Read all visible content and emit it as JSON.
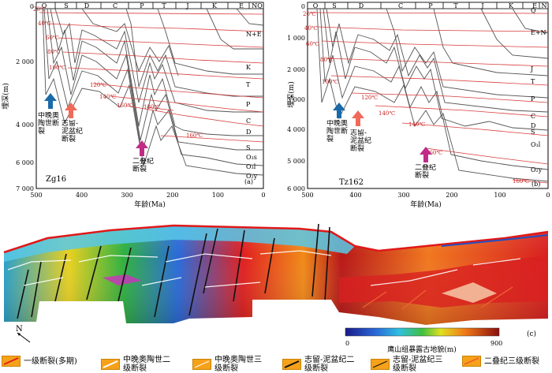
{
  "panel_a": {
    "eras": [
      "O",
      "S",
      "D",
      "C",
      "P",
      "T",
      "J",
      "K",
      "E",
      "NQ"
    ],
    "depth_ticks": [
      "0",
      "2 000",
      "4 000",
      "6 000",
      "7 000"
    ],
    "age_ticks": [
      "500",
      "400",
      "300",
      "200",
      "100",
      "0"
    ],
    "ylabel": "埋深(m)",
    "xlabel": "年龄(Ma)",
    "well": "Zg16",
    "tag": "(a)",
    "temps": [
      "20℃",
      "40℃",
      "60℃",
      "80℃",
      "100℃",
      "120℃",
      "140℃",
      "160℃",
      "180℃",
      "160℃"
    ],
    "strata": [
      "N+E",
      "K",
      "T",
      "P",
      "C",
      "D",
      "S",
      "O₃s",
      "O₃l",
      "O₂y"
    ],
    "arrow_blue": "中晚奥陶世断裂",
    "arrow_red": "志留-泥盆纪断裂",
    "arrow_purple": "二叠纪断裂"
  },
  "panel_b": {
    "eras": [
      "O",
      "S",
      "D",
      "C",
      "P",
      "T",
      "J",
      "K",
      "E",
      "N"
    ],
    "depth_ticks": [
      "0",
      "1 000",
      "2 000",
      "3 000",
      "4 000",
      "5 000",
      "6 000"
    ],
    "age_ticks": [
      "500",
      "400",
      "300",
      "200",
      "100",
      "0"
    ],
    "ylabel": "埋深(m)",
    "xlabel": "年龄(Ma)",
    "well": "Tz162",
    "tag": "(b)",
    "temps": [
      "20℃",
      "40℃",
      "60℃",
      "80℃",
      "100℃",
      "120℃",
      "140℃",
      "140℃",
      "160℃",
      "160℃"
    ],
    "strata": [
      "Q",
      "E+N",
      "J",
      "T",
      "P",
      "C",
      "D",
      "S",
      "O₃l",
      "O₂y"
    ],
    "arrow_blue": "中晚奥陶世断裂",
    "arrow_red": "志留-泥盆纪断裂",
    "arrow_purple": "二叠纪断裂"
  },
  "panel_c": {
    "tag": "(c)",
    "north": "N",
    "colorbar_min": "0",
    "colorbar_max": "900",
    "colorbar_title": "鹰山组暴露古地貌(m)"
  },
  "legend": [
    {
      "label": "一级断裂(多期)",
      "color": "#e0201a"
    },
    {
      "label": "中晚奥陶世二级断裂",
      "color": "#ffffff"
    },
    {
      "label": "中晚奥陶世三级断裂",
      "color": "#ffffff"
    },
    {
      "label": "志留-泥盆纪二级断裂",
      "color": "#111111"
    },
    {
      "label": "志留-泥盆纪三级断裂",
      "color": "#111111"
    },
    {
      "label": "二叠纪三级断裂",
      "color": "#ee5533"
    }
  ]
}
